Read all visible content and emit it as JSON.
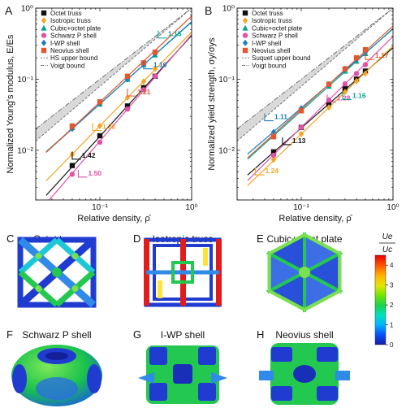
{
  "panel_letters": {
    "A": "A",
    "B": "B",
    "C": "C",
    "D": "D",
    "E": "E",
    "F": "F",
    "G": "G",
    "H": "H"
  },
  "chart_data": [
    {
      "type": "line",
      "panel": "A",
      "xlabel": "Relative density, ρ̄",
      "ylabel": "Normalized Young's modulus, E/Es",
      "xscale": "log",
      "yscale": "log",
      "xlim": [
        0.02,
        1
      ],
      "ylim": [
        0.002,
        1
      ],
      "x_ticks": [
        {
          "v": 0.1,
          "label": "10⁻¹"
        },
        {
          "v": 1,
          "label": "10⁰"
        }
      ],
      "y_ticks": [
        {
          "v": 0.01,
          "label": "10⁻²"
        },
        {
          "v": 0.1,
          "label": "10⁻¹"
        },
        {
          "v": 1,
          "label": "10⁰"
        }
      ],
      "legend_position": "top-left",
      "series": [
        {
          "name": "Octet truss",
          "marker": "square",
          "color": "#111111",
          "x": [
            0.05,
            0.1,
            0.2,
            0.3,
            0.4
          ],
          "y": [
            0.0061,
            0.016,
            0.042,
            0.076,
            0.11
          ],
          "slope": 1.42
        },
        {
          "name": "Isotropic truss",
          "marker": "diamond",
          "color": "#f5a524",
          "x": [
            0.05,
            0.1,
            0.2,
            0.3,
            0.4
          ],
          "y": [
            0.0088,
            0.022,
            0.055,
            0.093,
            0.14
          ],
          "slope": 1.32
        },
        {
          "name": "Cubic+octet plate",
          "marker": "triangle",
          "color": "#00a693",
          "x": [
            0.05,
            0.1,
            0.2,
            0.3,
            0.4
          ],
          "y": [
            0.021,
            0.045,
            0.1,
            0.16,
            0.22
          ],
          "slope": 1.15
        },
        {
          "name": "Schwarz P shell",
          "marker": "circle",
          "color": "#e052a6",
          "x": [
            0.05,
            0.1,
            0.2,
            0.3,
            0.4
          ],
          "y": [
            0.0046,
            0.013,
            0.038,
            0.071,
            0.11
          ],
          "slope": 1.5
        },
        {
          "name": "I-WP shell",
          "marker": "diamond",
          "color": "#1f7fbf",
          "x": [
            0.05,
            0.1,
            0.2,
            0.3,
            0.4
          ],
          "y": [
            0.02,
            0.045,
            0.1,
            0.16,
            0.23
          ],
          "slope": 1.16
        },
        {
          "name": "Neovius shell",
          "marker": "square",
          "color": "#e4572e",
          "x": [
            0.05,
            0.1,
            0.2,
            0.3,
            0.4
          ],
          "y": [
            0.022,
            0.048,
            0.11,
            0.17,
            0.24
          ],
          "slope": 1.21
        }
      ],
      "bounds": [
        {
          "name": "HS upper bound",
          "style": "dashed",
          "x": [
            0.02,
            1
          ],
          "y": [
            0.0135,
            1
          ]
        },
        {
          "name": "Voigt bound",
          "style": "dashdot",
          "x": [
            0.02,
            1
          ],
          "y": [
            0.02,
            1
          ]
        }
      ],
      "slope_annotations": [
        {
          "label": "1.42",
          "color": "#111111",
          "x": 0.06,
          "y": 0.0075
        },
        {
          "label": "1.32",
          "color": "#f5a524",
          "x": 0.1,
          "y": 0.019
        },
        {
          "label": "1.21",
          "color": "#e4572e",
          "x": 0.24,
          "y": 0.058
        },
        {
          "label": "1.16",
          "color": "#1f7fbf",
          "x": 0.36,
          "y": 0.14
        },
        {
          "label": "1.15",
          "color": "#00a693",
          "x": 0.52,
          "y": 0.38
        },
        {
          "label": "1.50",
          "color": "#e052a6",
          "x": 0.07,
          "y": 0.0042
        }
      ]
    },
    {
      "type": "line",
      "panel": "B",
      "xlabel": "Relative density, ρ̄",
      "ylabel": "Normalized yield strength, σy/σys",
      "xscale": "log",
      "yscale": "log",
      "xlim": [
        0.02,
        1
      ],
      "ylim": [
        0.002,
        1
      ],
      "x_ticks": [
        {
          "v": 0.1,
          "label": "10⁻¹"
        },
        {
          "v": 1,
          "label": "10⁰"
        }
      ],
      "y_ticks": [
        {
          "v": 0.01,
          "label": "10⁻²"
        },
        {
          "v": 0.1,
          "label": "10⁻¹"
        },
        {
          "v": 1,
          "label": "10⁰"
        }
      ],
      "legend_position": "top-left",
      "series": [
        {
          "name": "Octet truss",
          "marker": "square",
          "color": "#111111",
          "x": [
            0.05,
            0.1,
            0.2,
            0.3,
            0.4,
            0.5
          ],
          "y": [
            0.0095,
            0.021,
            0.045,
            0.074,
            0.1,
            0.13
          ],
          "slope": 1.13
        },
        {
          "name": "Isotropic truss",
          "marker": "diamond",
          "color": "#f5a524",
          "x": [
            0.05,
            0.1,
            0.2,
            0.3,
            0.4,
            0.5
          ],
          "y": [
            0.0074,
            0.017,
            0.04,
            0.066,
            0.094,
            0.12
          ],
          "slope": 1.24
        },
        {
          "name": "Cubic+octet plate",
          "marker": "triangle",
          "color": "#00a693",
          "x": [
            0.05,
            0.1,
            0.2,
            0.3,
            0.4,
            0.5
          ],
          "y": [
            0.016,
            0.036,
            0.08,
            0.13,
            0.18,
            0.23
          ],
          "slope": 1.16
        },
        {
          "name": "Schwarz P shell",
          "marker": "circle",
          "color": "#e052a6",
          "x": [
            0.05,
            0.1,
            0.2,
            0.3,
            0.4,
            0.5
          ],
          "y": [
            0.0085,
            0.021,
            0.051,
            0.086,
            0.12,
            0.16
          ],
          "slope": 1.28
        },
        {
          "name": "I-WP shell",
          "marker": "diamond",
          "color": "#1f7fbf",
          "x": [
            0.05,
            0.1,
            0.2,
            0.3,
            0.4,
            0.5
          ],
          "y": [
            0.018,
            0.039,
            0.085,
            0.14,
            0.19,
            0.24
          ],
          "slope": 1.11
        },
        {
          "name": "Neovius shell",
          "marker": "square",
          "color": "#e4572e",
          "x": [
            0.05,
            0.1,
            0.2,
            0.3,
            0.4,
            0.5
          ],
          "y": [
            0.0155,
            0.036,
            0.085,
            0.14,
            0.2,
            0.26
          ],
          "slope": 1.17
        }
      ],
      "bounds": [
        {
          "name": "Suquet upper bound",
          "style": "dashed",
          "x": [
            0.02,
            1
          ],
          "y": [
            0.0135,
            1
          ]
        },
        {
          "name": "Voigt bound",
          "style": "dashdot",
          "x": [
            0.02,
            1
          ],
          "y": [
            0.02,
            1
          ]
        }
      ],
      "slope_annotations": [
        {
          "label": "1.11",
          "color": "#1f7fbf",
          "x": 0.048,
          "y": 0.026
        },
        {
          "label": "1.13",
          "color": "#111111",
          "x": 0.075,
          "y": 0.012
        },
        {
          "label": "1.28",
          "color": "#e052a6",
          "x": 0.23,
          "y": 0.048
        },
        {
          "label": "1.16",
          "color": "#00a693",
          "x": 0.34,
          "y": 0.052
        },
        {
          "label": "1.17",
          "color": "#e4572e",
          "x": 0.6,
          "y": 0.19
        },
        {
          "label": "1.24",
          "color": "#f5a524",
          "x": 0.038,
          "y": 0.0045
        }
      ]
    }
  ],
  "renders": [
    {
      "id": "C",
      "title": "Octet truss",
      "shape": "octet"
    },
    {
      "id": "D",
      "title": "Isotropic truss",
      "shape": "isotropic"
    },
    {
      "id": "E",
      "title": "Cubic+octet plate",
      "shape": "plate"
    },
    {
      "id": "F",
      "title": "Schwarz P shell",
      "shape": "schwarz"
    },
    {
      "id": "G",
      "title": "I-WP shell",
      "shape": "iwp"
    },
    {
      "id": "H",
      "title": "Neovius shell",
      "shape": "neovius"
    }
  ],
  "colorbar": {
    "label_top": "Ue",
    "label_bottom": "Uc",
    "ticks": [
      "0",
      "1",
      "2",
      "3",
      "4"
    ],
    "range": [
      0,
      4.5
    ],
    "colors": [
      "#1a1aa6",
      "#0050ff",
      "#00b4ff",
      "#00e0c0",
      "#19d24b",
      "#6ee600",
      "#e6e600",
      "#ffb400",
      "#ff5a00",
      "#e60000"
    ]
  }
}
